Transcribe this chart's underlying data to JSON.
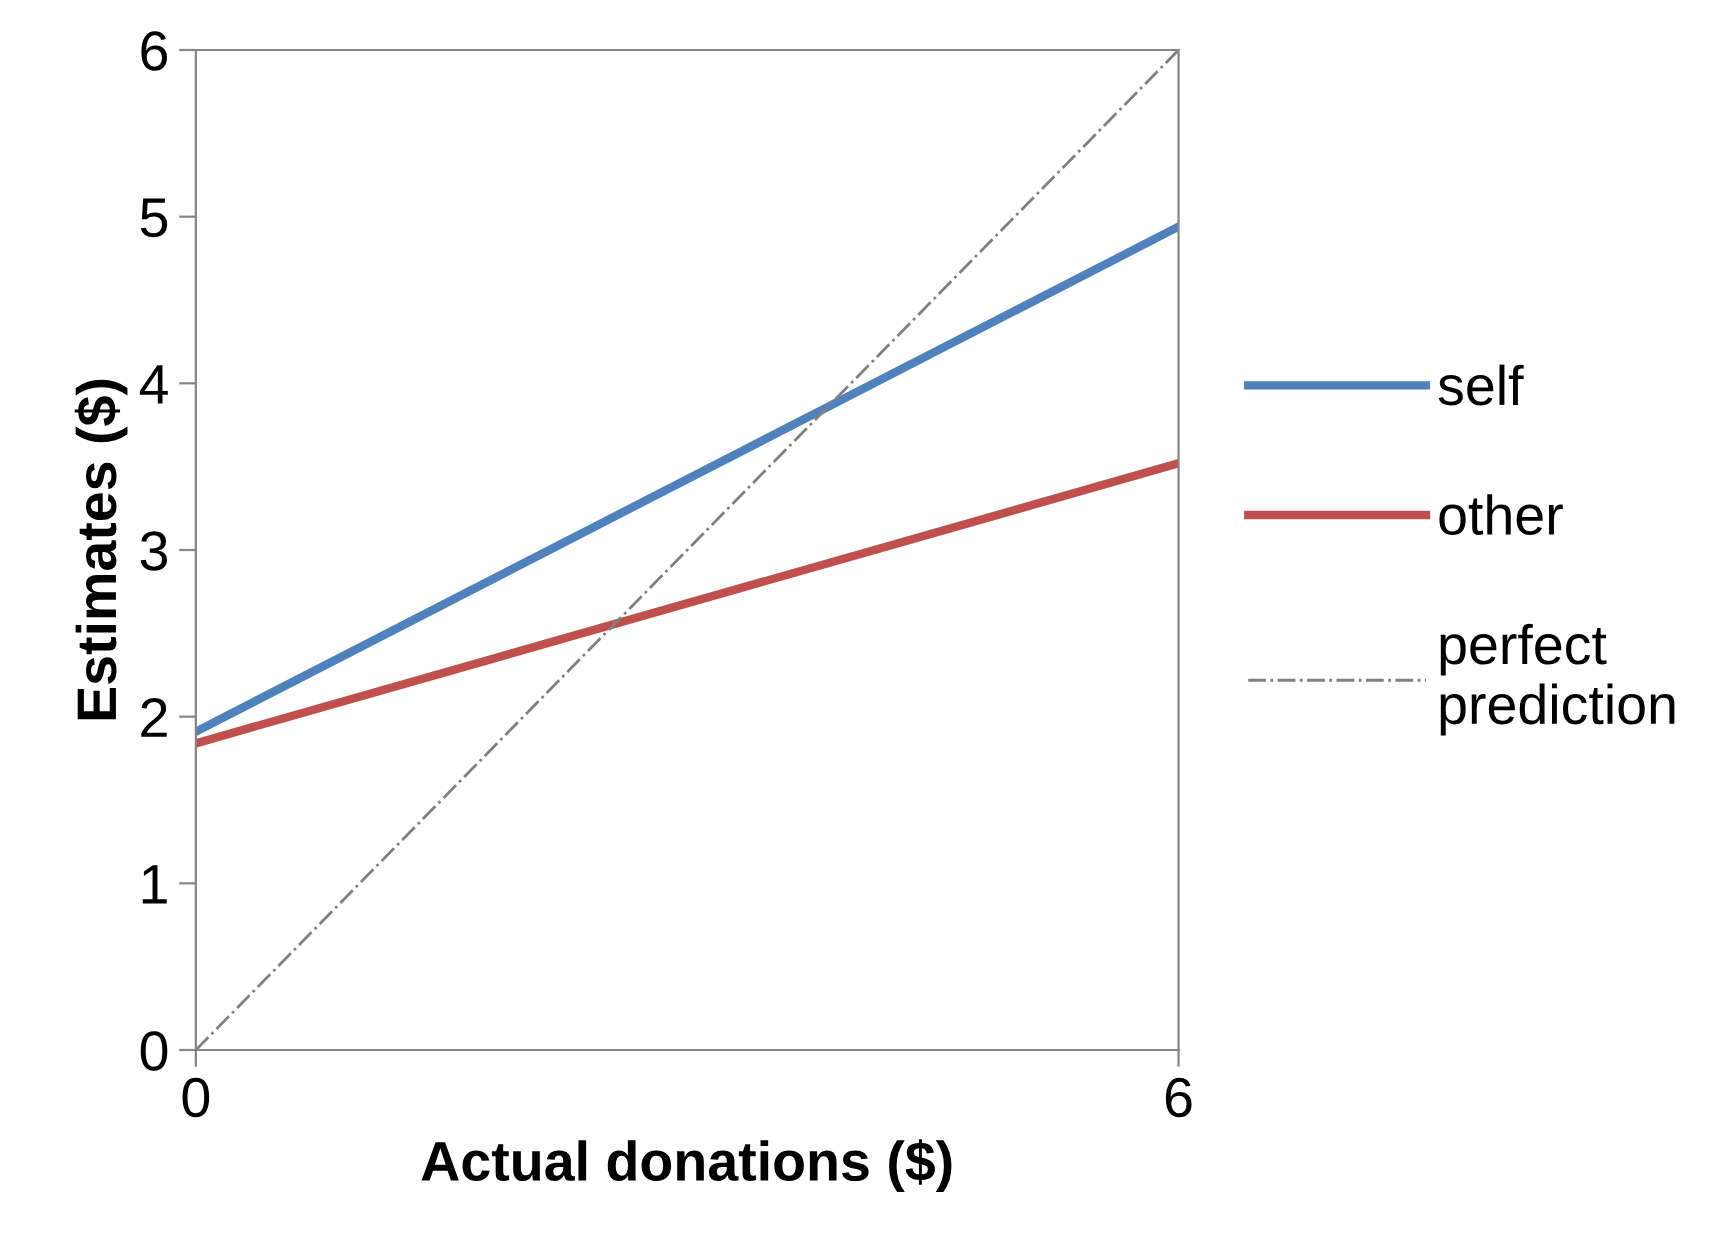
{
  "chart_data": {
    "type": "line",
    "xlabel": "Actual donations ($)",
    "ylabel": "Estimates ($)",
    "x": [
      0,
      6
    ],
    "series": [
      {
        "name": "self",
        "color": "#4f81bd",
        "values": [
          1.91,
          4.94
        ]
      },
      {
        "name": "other",
        "color": "#c0504d",
        "values": [
          1.84,
          3.52
        ]
      },
      {
        "name": "perfect\nprediction",
        "color": "#808080",
        "values": [
          0,
          6
        ],
        "line_style": "dashdot"
      }
    ],
    "xlim": [
      0,
      6
    ],
    "xticks": [
      0,
      6
    ],
    "ylim": [
      0,
      6
    ],
    "yticks": [
      0,
      1,
      2,
      3,
      4,
      5,
      6
    ],
    "legend": "right",
    "marker": "none"
  }
}
